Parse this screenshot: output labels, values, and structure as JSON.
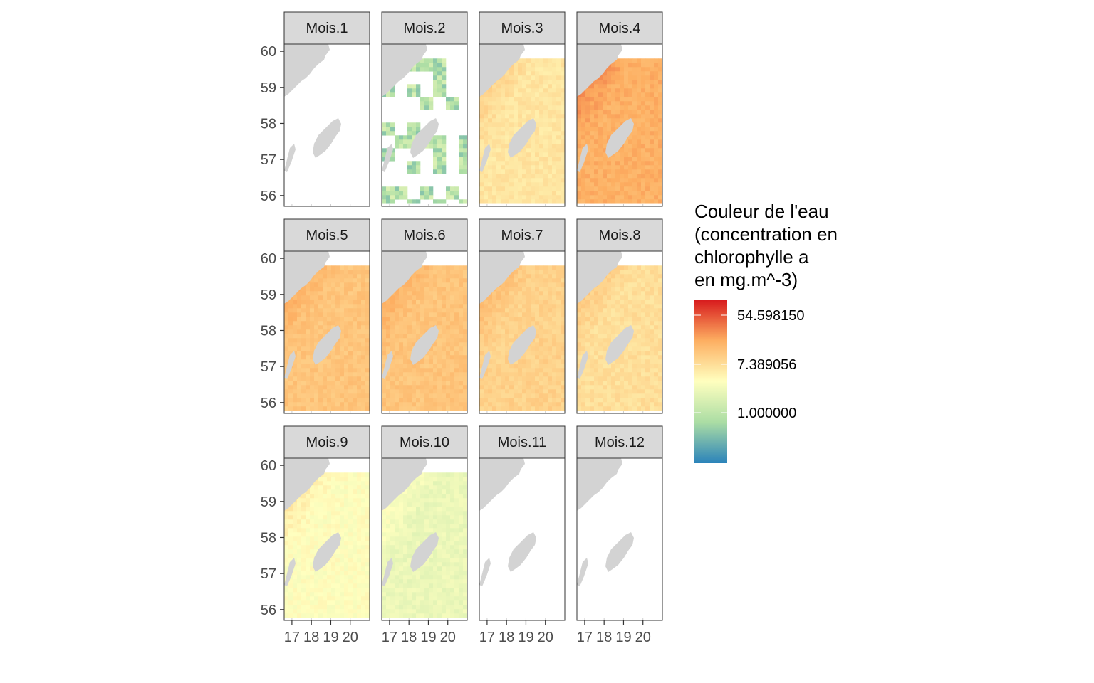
{
  "chart_data": {
    "type": "heatmap",
    "facet_labels": [
      "Mois.1",
      "Mois.2",
      "Mois.3",
      "Mois.4",
      "Mois.5",
      "Mois.6",
      "Mois.7",
      "Mois.8",
      "Mois.9",
      "Mois.10",
      "Mois.11",
      "Mois.12"
    ],
    "x_ticks": [
      "17",
      "18",
      "19",
      "20"
    ],
    "y_ticks": [
      "56",
      "57",
      "58",
      "59",
      "60"
    ],
    "xlim": [
      16.6,
      21.0
    ],
    "ylim": [
      55.7,
      60.2
    ],
    "data_extent": {
      "lon": [
        16.6,
        20.9
      ],
      "lat": [
        55.8,
        59.8
      ]
    },
    "legend": {
      "title_lines": [
        "Couleur de l'eau",
        "(concentration en",
        "chlorophylle a",
        "en mg.m^-3)"
      ],
      "labels": [
        "54.598150",
        "7.389056",
        "1.000000"
      ],
      "scale": "log",
      "colors": [
        "#2b83ba",
        "#abdda4",
        "#ffffbf",
        "#fdae61",
        "#d7191c"
      ]
    },
    "monthly_pattern": [
      {
        "month": "Mois.1",
        "coverage": "none",
        "level": null
      },
      {
        "month": "Mois.2",
        "coverage": "sparse",
        "level": 0.3
      },
      {
        "month": "Mois.3",
        "coverage": "full",
        "level": 0.58
      },
      {
        "month": "Mois.4",
        "coverage": "full",
        "level": 0.74
      },
      {
        "month": "Mois.5",
        "coverage": "full",
        "level": 0.68
      },
      {
        "month": "Mois.6",
        "coverage": "full",
        "level": 0.68
      },
      {
        "month": "Mois.7",
        "coverage": "full",
        "level": 0.64
      },
      {
        "month": "Mois.8",
        "coverage": "full",
        "level": 0.6
      },
      {
        "month": "Mois.9",
        "coverage": "full",
        "level": 0.5
      },
      {
        "month": "Mois.10",
        "coverage": "full",
        "level": 0.44
      },
      {
        "month": "Mois.11",
        "coverage": "none",
        "level": null
      },
      {
        "month": "Mois.12",
        "coverage": "none",
        "level": null
      }
    ]
  },
  "colors": {
    "land": "#d3d3d3",
    "strip_bg": "#d9d9d9",
    "panel_border": "#333333",
    "axis_text": "#4d4d4d"
  }
}
